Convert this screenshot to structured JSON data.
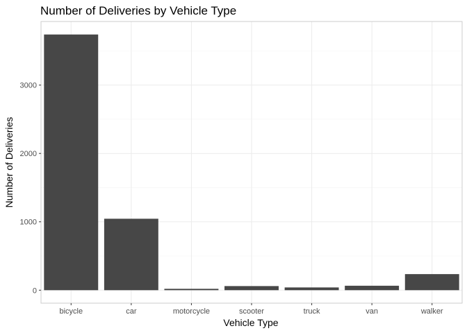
{
  "chart_data": {
    "type": "bar",
    "title": "Number of Deliveries by Vehicle Type",
    "xlabel": "Vehicle Type",
    "ylabel": "Number of Deliveries",
    "categories": [
      "bicycle",
      "car",
      "motorcycle",
      "scooter",
      "truck",
      "van",
      "walker"
    ],
    "values": [
      3740,
      1045,
      20,
      60,
      40,
      65,
      235
    ],
    "ylim": [
      -190,
      3930
    ],
    "yticks": [
      0,
      1000,
      2000,
      3000
    ],
    "ytick_labels": [
      "0",
      "1000",
      "2000",
      "3000"
    ],
    "grid": true,
    "legend": "none",
    "colors": {
      "bar": "#474747",
      "panel_border": "#cccccc",
      "grid_major": "#ebebeb",
      "grid_minor": "#f5f5f5",
      "tick_label": "#4d4d4d"
    }
  }
}
